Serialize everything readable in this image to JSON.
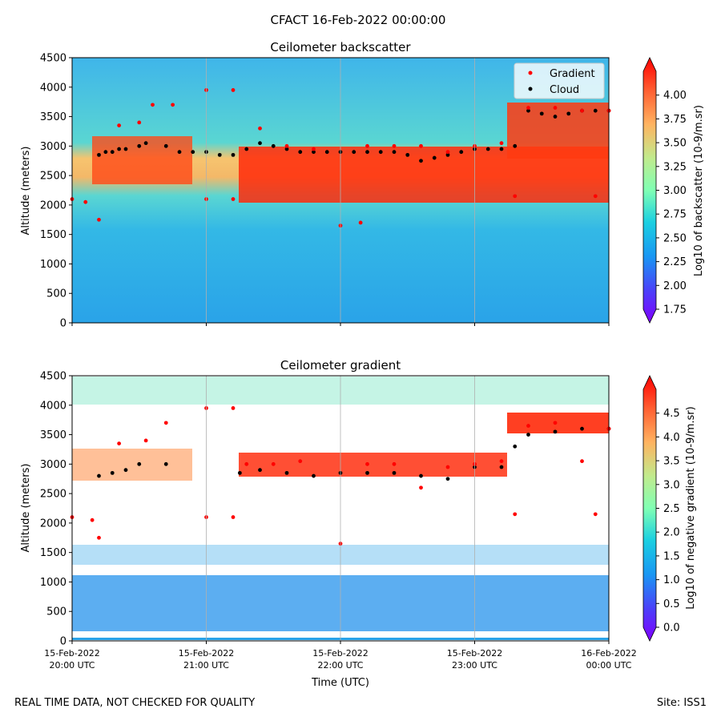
{
  "suptitle": "CFACT 16-Feb-2022 00:00:00",
  "footer": {
    "left": "REAL TIME DATA, NOT CHECKED FOR QUALITY",
    "right": "Site: ISS1"
  },
  "chart_data": [
    {
      "type": "heatmap",
      "title": "Ceilometer backscatter",
      "ylabel": "Altitude (meters)",
      "ylim": [
        0,
        4500
      ],
      "yticks": [
        0,
        500,
        1000,
        1500,
        2000,
        2500,
        3000,
        3500,
        4000,
        4500
      ],
      "xlim_hours_utc": [
        20,
        24
      ],
      "xticks": [
        {
          "line1": "",
          "line2": ""
        },
        {
          "line1": "",
          "line2": ""
        },
        {
          "line1": "",
          "line2": ""
        },
        {
          "line1": "",
          "line2": ""
        },
        {
          "line1": "",
          "line2": ""
        }
      ],
      "xlabel": "",
      "grid": "vertical",
      "colorbar": {
        "label": "Log10 of backscatter (10-9/m.sr)",
        "range": [
          1.75,
          4.25
        ],
        "ticks": [
          "1.75",
          "2.00",
          "2.25",
          "2.50",
          "2.75",
          "3.00",
          "3.25",
          "3.50",
          "3.75",
          "4.00"
        ]
      },
      "legend": {
        "placement": "top-right",
        "entries": [
          {
            "label": "Gradient",
            "color": "#ff0000"
          },
          {
            "label": "Cloud",
            "color": "#000000"
          }
        ]
      },
      "cloud_layer_series": [
        {
          "name": "Cloud",
          "color": "#000000",
          "points": [
            [
              20.2,
              2850
            ],
            [
              20.25,
              2900
            ],
            [
              20.3,
              2900
            ],
            [
              20.35,
              2950
            ],
            [
              20.4,
              2950
            ],
            [
              20.5,
              3000
            ],
            [
              20.55,
              3050
            ],
            [
              20.7,
              3000
            ],
            [
              20.8,
              2900
            ],
            [
              20.9,
              2900
            ],
            [
              21.0,
              2900
            ],
            [
              21.1,
              2850
            ],
            [
              21.2,
              2850
            ],
            [
              21.3,
              2950
            ],
            [
              21.4,
              3050
            ],
            [
              21.5,
              3000
            ],
            [
              21.6,
              2950
            ],
            [
              21.7,
              2900
            ],
            [
              21.8,
              2900
            ],
            [
              21.9,
              2900
            ],
            [
              22.0,
              2900
            ],
            [
              22.1,
              2900
            ],
            [
              22.2,
              2900
            ],
            [
              22.3,
              2900
            ],
            [
              22.4,
              2900
            ],
            [
              22.5,
              2850
            ],
            [
              22.6,
              2750
            ],
            [
              22.7,
              2800
            ],
            [
              22.8,
              2850
            ],
            [
              22.9,
              2900
            ],
            [
              23.0,
              2950
            ],
            [
              23.1,
              2950
            ],
            [
              23.2,
              2950
            ],
            [
              23.3,
              3000
            ],
            [
              23.4,
              3600
            ],
            [
              23.5,
              3550
            ],
            [
              23.6,
              3500
            ],
            [
              23.7,
              3550
            ],
            [
              23.8,
              3600
            ],
            [
              23.9,
              3600
            ],
            [
              24.0,
              3600
            ]
          ]
        },
        {
          "name": "Gradient",
          "color": "#ff0000",
          "points": [
            [
              20.0,
              2100
            ],
            [
              20.1,
              2050
            ],
            [
              20.2,
              1750
            ],
            [
              20.35,
              3350
            ],
            [
              20.5,
              3400
            ],
            [
              20.6,
              3700
            ],
            [
              20.75,
              3700
            ],
            [
              21.0,
              3950
            ],
            [
              21.2,
              3950
            ],
            [
              21.0,
              2100
            ],
            [
              21.2,
              2100
            ],
            [
              21.4,
              3300
            ],
            [
              21.6,
              3000
            ],
            [
              21.8,
              2950
            ],
            [
              22.0,
              1650
            ],
            [
              22.15,
              1700
            ],
            [
              22.2,
              3000
            ],
            [
              22.4,
              3000
            ],
            [
              22.6,
              3000
            ],
            [
              22.8,
              2900
            ],
            [
              23.0,
              3000
            ],
            [
              23.2,
              3050
            ],
            [
              23.3,
              2150
            ],
            [
              23.4,
              3650
            ],
            [
              23.6,
              3650
            ],
            [
              23.8,
              3600
            ],
            [
              23.9,
              2150
            ],
            [
              24.0,
              3600
            ]
          ]
        }
      ]
    },
    {
      "type": "heatmap",
      "title": "Ceilometer gradient",
      "ylabel": "Altitude (meters)",
      "ylim": [
        0,
        4500
      ],
      "yticks": [
        0,
        500,
        1000,
        1500,
        2000,
        2500,
        3000,
        3500,
        4000,
        4500
      ],
      "xlim_hours_utc": [
        20,
        24
      ],
      "xticks": [
        {
          "line1": "15-Feb-2022",
          "line2": "20:00 UTC"
        },
        {
          "line1": "15-Feb-2022",
          "line2": "21:00 UTC"
        },
        {
          "line1": "15-Feb-2022",
          "line2": "22:00 UTC"
        },
        {
          "line1": "15-Feb-2022",
          "line2": "23:00 UTC"
        },
        {
          "line1": "16-Feb-2022",
          "line2": "00:00 UTC"
        }
      ],
      "xlabel": "Time (UTC)",
      "grid": "vertical",
      "colorbar": {
        "label": "Log10 of negative gradient (10-9/m.sr)",
        "range": [
          0,
          5
        ],
        "ticks": [
          "0.0",
          "0.5",
          "1.0",
          "1.5",
          "2.0",
          "2.5",
          "3.0",
          "3.5",
          "4.0",
          "4.5"
        ]
      },
      "cloud_layer_series": [
        {
          "name": "Cloud",
          "color": "#000000",
          "points": [
            [
              20.2,
              2800
            ],
            [
              20.3,
              2850
            ],
            [
              20.4,
              2900
            ],
            [
              20.5,
              3000
            ],
            [
              20.7,
              3000
            ],
            [
              21.25,
              2850
            ],
            [
              21.4,
              2900
            ],
            [
              21.6,
              2850
            ],
            [
              21.8,
              2800
            ],
            [
              22.0,
              2850
            ],
            [
              22.2,
              2850
            ],
            [
              22.4,
              2850
            ],
            [
              22.6,
              2800
            ],
            [
              22.8,
              2750
            ],
            [
              23.0,
              2950
            ],
            [
              23.2,
              2950
            ],
            [
              23.3,
              3300
            ],
            [
              23.4,
              3500
            ],
            [
              23.6,
              3550
            ],
            [
              23.8,
              3600
            ],
            [
              24.0,
              3600
            ]
          ]
        },
        {
          "name": "Gradient",
          "color": "#ff0000",
          "points": [
            [
              20.0,
              2100
            ],
            [
              20.15,
              2050
            ],
            [
              20.2,
              1750
            ],
            [
              20.35,
              3350
            ],
            [
              20.55,
              3400
            ],
            [
              20.7,
              3700
            ],
            [
              21.0,
              3950
            ],
            [
              21.2,
              3950
            ],
            [
              21.0,
              2100
            ],
            [
              21.2,
              2100
            ],
            [
              21.3,
              3000
            ],
            [
              21.5,
              3000
            ],
            [
              21.7,
              3050
            ],
            [
              22.0,
              1650
            ],
            [
              22.2,
              3000
            ],
            [
              22.4,
              3000
            ],
            [
              22.6,
              2600
            ],
            [
              22.8,
              2950
            ],
            [
              23.0,
              3000
            ],
            [
              23.2,
              3050
            ],
            [
              23.3,
              2150
            ],
            [
              23.4,
              3650
            ],
            [
              23.6,
              3700
            ],
            [
              23.8,
              3050
            ],
            [
              23.9,
              2150
            ],
            [
              24.0,
              3600
            ]
          ]
        }
      ]
    }
  ]
}
